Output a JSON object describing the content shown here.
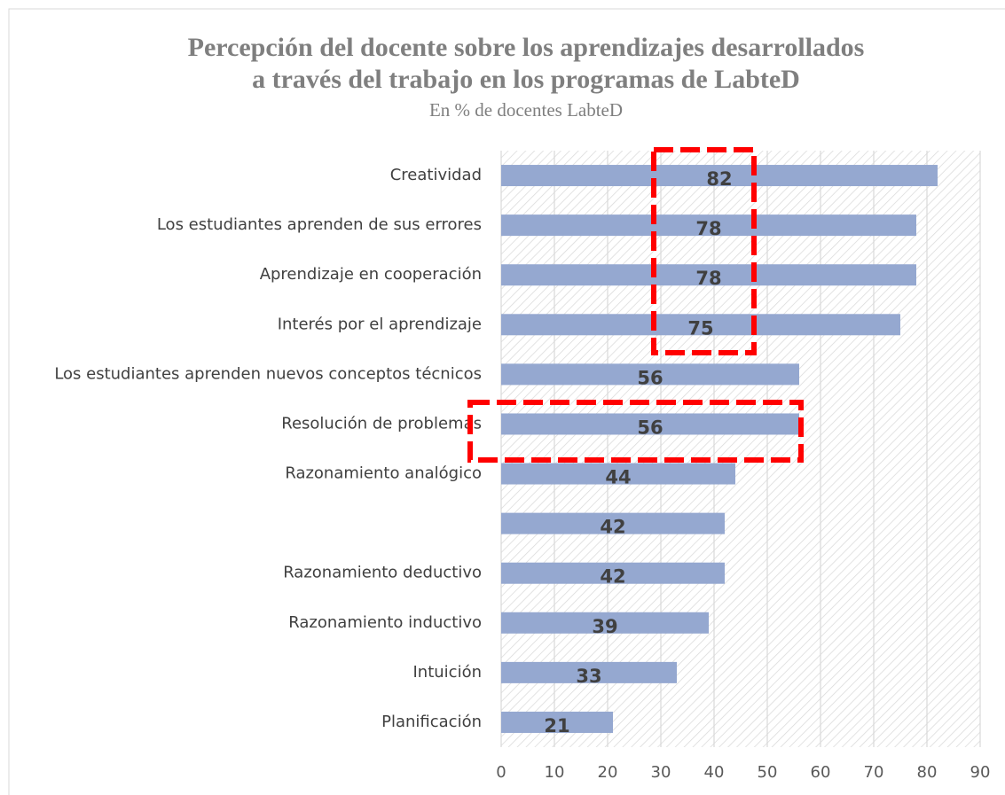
{
  "chart_data": {
    "type": "bar",
    "orientation": "horizontal",
    "title": [
      "Percepción del docente sobre los aprendizajes desarrollados",
      "a través del trabajo en los  programas de LabteD"
    ],
    "subtitle": "En % de docentes LabteD",
    "categories": [
      "Creatividad",
      "Los estudiantes aprenden de sus errores",
      "Aprendizaje en cooperación",
      "Interés por el aprendizaje",
      "Los estudiantes aprenden nuevos conceptos técnicos",
      "Resolución de problemas",
      "Razonamiento analógico",
      null,
      "Razonamiento deductivo",
      "Razonamiento inductivo",
      "Intuición",
      "Planificación"
    ],
    "values": [
      82,
      78,
      78,
      75,
      56,
      56,
      44,
      42,
      42,
      39,
      33,
      21
    ],
    "color": "#95a8d0",
    "xlim": [
      0,
      90
    ],
    "xticks": [
      0,
      10,
      20,
      30,
      40,
      50,
      60,
      70,
      80,
      90
    ],
    "grid": true
  }
}
